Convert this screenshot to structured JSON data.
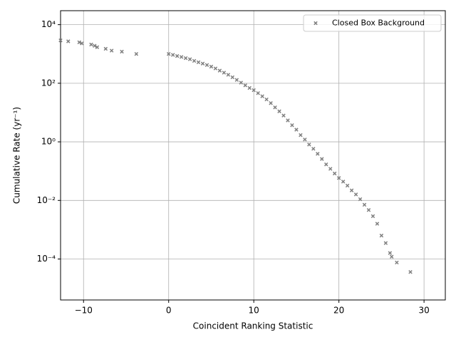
{
  "chart_data": {
    "type": "scatter",
    "xlabel": "Coincident Ranking Statistic",
    "ylabel": "Cumulative Rate (yr⁻¹)",
    "xlim": [
      -12.7,
      32.5
    ],
    "ylim": [
      4e-06,
      30000
    ],
    "log_y": true,
    "grid": true,
    "legend_loc": "upper right",
    "xticks": [
      {
        "value": -10,
        "label": "−10"
      },
      0,
      10,
      20,
      30
    ],
    "yticks": [
      {
        "value": 0.0001,
        "label": "10⁻⁴"
      },
      {
        "value": 0.01,
        "label": "10⁻²"
      },
      {
        "value": 1,
        "label": "10⁰"
      },
      {
        "value": 100,
        "label": "10²"
      },
      {
        "value": 10000,
        "label": "10⁴"
      }
    ],
    "series": [
      {
        "name": "Closed Box Background",
        "color": "#808080",
        "x": [
          -12.7,
          -11.8,
          -10.5,
          -10.2,
          -9.1,
          -8.7,
          -8.4,
          -7.4,
          -6.7,
          -5.5,
          -3.8,
          0,
          0.5,
          1,
          1.5,
          2,
          2.5,
          3,
          3.5,
          4,
          4.5,
          5,
          5.5,
          6,
          6.5,
          7,
          7.5,
          8,
          8.5,
          9,
          9.5,
          10,
          10.5,
          11,
          11.5,
          12,
          12.5,
          13,
          13.5,
          14,
          14.5,
          15,
          15.5,
          16,
          16.5,
          17,
          17.5,
          18,
          18.5,
          19,
          19.5,
          20,
          20.5,
          21,
          21.5,
          22,
          22.5,
          23,
          23.5,
          24,
          24.5,
          25,
          25.5,
          26,
          26.2,
          26.8,
          28.4
        ],
        "values": [
          2900,
          2700,
          2500,
          2300,
          2100,
          1900,
          1700,
          1500,
          1300,
          1200,
          1000,
          1000,
          930,
          850,
          790,
          720,
          660,
          580,
          520,
          470,
          420,
          370,
          320,
          270,
          230,
          195,
          160,
          130,
          105,
          85,
          69,
          58,
          46,
          36,
          28,
          21,
          15,
          11,
          7.9,
          5.4,
          3.7,
          2.6,
          1.7,
          1.2,
          0.81,
          0.58,
          0.39,
          0.26,
          0.17,
          0.12,
          0.083,
          0.058,
          0.044,
          0.032,
          0.022,
          0.016,
          0.011,
          0.0071,
          0.0047,
          0.0029,
          0.0016,
          0.00063,
          0.00035,
          0.00016,
          0.00012,
          7.6e-05,
          3.6e-05
        ]
      }
    ]
  }
}
